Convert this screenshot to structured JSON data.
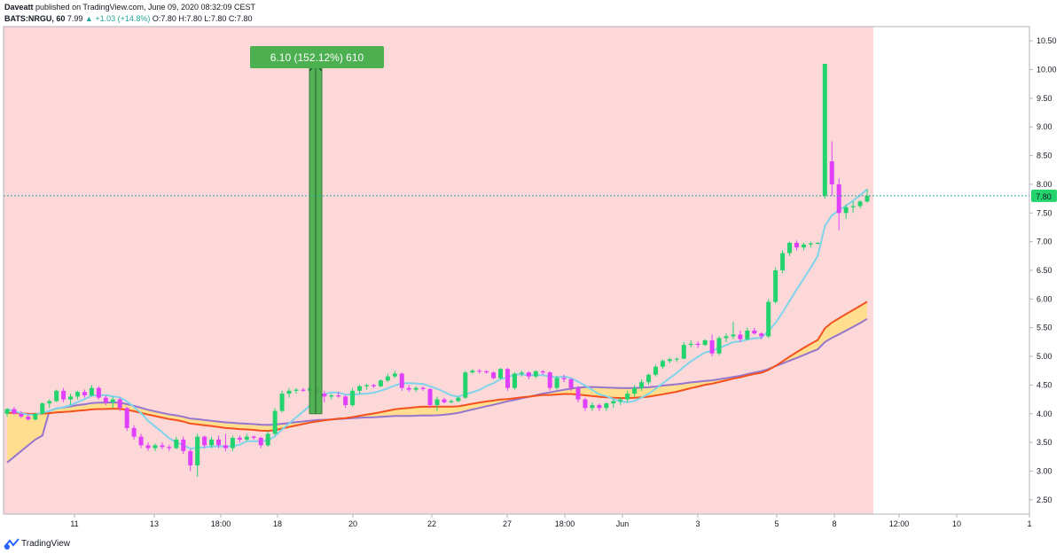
{
  "header": {
    "author": "Daveatt",
    "published": "published on TradingView.com, June 09, 2020 08:32:09 CEST",
    "symbol": "BATS:NRGU, 60",
    "last": "7.99",
    "change": "▲ +1.03 (+14.8%)",
    "ohlc": "O:7.80 H:7.80 L:7.80 C:7.80"
  },
  "footer": {
    "brand": "TradingView"
  },
  "colors": {
    "background_zone": "#fdd8d8",
    "up": "#22d36e",
    "down": "#e040fb",
    "sma_fast": "#7fd3ea",
    "ema_red": "#f4511e",
    "sma_purple": "#9575cd",
    "cloud": "#ffe082",
    "measure_box": "#4caf50",
    "price_line": "#26a69a"
  },
  "chart_data": {
    "type": "candlestick",
    "y_axis": {
      "min": 2.25,
      "max": 10.75,
      "position": "right",
      "tick_labels": [
        "2.50",
        "3.00",
        "3.50",
        "4.00",
        "4.50",
        "5.00",
        "5.50",
        "6.00",
        "6.50",
        "7.00",
        "7.50",
        "8.00",
        "8.50",
        "9.00",
        "9.50",
        "10.00",
        "10.50"
      ]
    },
    "x_axis": {
      "tick_labels": [
        "11",
        "13",
        "18:00",
        "18",
        "20",
        "22",
        "27",
        "18:00",
        "Jun",
        "3",
        "5",
        "8",
        "12:00",
        "10",
        "1"
      ]
    },
    "last_price_label": "7.80",
    "measure": {
      "label": "6.10 (152.12%) 610",
      "from": 4.0,
      "to": 10.1
    },
    "candles": [
      [
        4.0,
        4.1,
        3.95,
        4.08
      ],
      [
        4.08,
        4.12,
        3.98,
        4.0
      ],
      [
        4.0,
        4.05,
        3.92,
        3.95
      ],
      [
        3.95,
        4.0,
        3.88,
        3.9
      ],
      [
        3.9,
        4.02,
        3.88,
        4.0
      ],
      [
        4.0,
        4.2,
        3.98,
        4.18
      ],
      [
        4.18,
        4.25,
        4.1,
        4.22
      ],
      [
        4.22,
        4.42,
        4.2,
        4.4
      ],
      [
        4.4,
        4.45,
        4.2,
        4.25
      ],
      [
        4.25,
        4.35,
        4.15,
        4.3
      ],
      [
        4.3,
        4.4,
        4.25,
        4.38
      ],
      [
        4.38,
        4.42,
        4.28,
        4.32
      ],
      [
        4.32,
        4.5,
        4.3,
        4.45
      ],
      [
        4.45,
        4.48,
        4.25,
        4.28
      ],
      [
        4.28,
        4.32,
        4.15,
        4.2
      ],
      [
        4.2,
        4.3,
        4.1,
        4.25
      ],
      [
        4.25,
        4.28,
        4.05,
        4.1
      ],
      [
        4.1,
        4.12,
        3.7,
        3.75
      ],
      [
        3.75,
        3.8,
        3.55,
        3.6
      ],
      [
        3.6,
        3.65,
        3.4,
        3.45
      ],
      [
        3.45,
        3.5,
        3.35,
        3.4
      ],
      [
        3.4,
        3.48,
        3.35,
        3.45
      ],
      [
        3.45,
        3.5,
        3.38,
        3.42
      ],
      [
        3.42,
        3.46,
        3.35,
        3.4
      ],
      [
        3.4,
        3.6,
        3.38,
        3.55
      ],
      [
        3.55,
        3.6,
        3.3,
        3.35
      ],
      [
        3.35,
        3.38,
        3.0,
        3.1
      ],
      [
        3.1,
        3.65,
        2.9,
        3.6
      ],
      [
        3.6,
        3.62,
        3.4,
        3.45
      ],
      [
        3.45,
        3.6,
        3.4,
        3.55
      ],
      [
        3.55,
        3.62,
        3.4,
        3.45
      ],
      [
        3.45,
        3.65,
        3.35,
        3.4
      ],
      [
        3.4,
        3.62,
        3.35,
        3.58
      ],
      [
        3.58,
        3.62,
        3.5,
        3.55
      ],
      [
        3.55,
        3.65,
        3.52,
        3.6
      ],
      [
        3.6,
        3.62,
        3.55,
        3.58
      ],
      [
        3.58,
        3.6,
        3.4,
        3.45
      ],
      [
        3.45,
        3.7,
        3.42,
        3.65
      ],
      [
        3.65,
        4.1,
        3.62,
        4.05
      ],
      [
        4.05,
        4.4,
        4.02,
        4.35
      ],
      [
        4.35,
        4.45,
        4.28,
        4.4
      ],
      [
        4.4,
        4.45,
        4.35,
        4.42
      ],
      [
        4.42,
        4.45,
        4.38,
        4.4
      ],
      [
        4.4,
        4.48,
        4.35,
        4.45
      ],
      [
        4.45,
        4.47,
        4.32,
        4.35
      ],
      [
        4.35,
        4.4,
        4.2,
        4.3
      ],
      [
        4.3,
        4.35,
        4.25,
        4.32
      ],
      [
        4.32,
        4.38,
        4.28,
        4.3
      ],
      [
        4.3,
        4.33,
        4.1,
        4.15
      ],
      [
        4.15,
        4.45,
        4.12,
        4.4
      ],
      [
        4.4,
        4.5,
        4.35,
        4.48
      ],
      [
        4.48,
        4.52,
        4.42,
        4.5
      ],
      [
        4.5,
        4.52,
        4.45,
        4.48
      ],
      [
        4.48,
        4.6,
        4.46,
        4.58
      ],
      [
        4.58,
        4.7,
        4.55,
        4.65
      ],
      [
        4.65,
        4.75,
        4.62,
        4.7
      ],
      [
        4.7,
        4.72,
        4.4,
        4.45
      ],
      [
        4.45,
        4.5,
        4.38,
        4.42
      ],
      [
        4.42,
        4.48,
        4.38,
        4.45
      ],
      [
        4.45,
        4.48,
        4.4,
        4.43
      ],
      [
        4.43,
        4.45,
        4.1,
        4.15
      ],
      [
        4.15,
        4.3,
        4.05,
        4.25
      ],
      [
        4.25,
        4.28,
        4.18,
        4.2
      ],
      [
        4.2,
        4.25,
        4.18,
        4.22
      ],
      [
        4.22,
        4.3,
        4.2,
        4.28
      ],
      [
        4.28,
        4.75,
        4.26,
        4.72
      ],
      [
        4.72,
        4.78,
        4.7,
        4.75
      ],
      [
        4.75,
        4.78,
        4.7,
        4.74
      ],
      [
        4.74,
        4.76,
        4.7,
        4.72
      ],
      [
        4.72,
        4.74,
        4.6,
        4.62
      ],
      [
        4.62,
        4.8,
        4.6,
        4.78
      ],
      [
        4.78,
        4.8,
        4.4,
        4.45
      ],
      [
        4.45,
        4.72,
        4.42,
        4.7
      ],
      [
        4.7,
        4.75,
        4.65,
        4.72
      ],
      [
        4.72,
        4.74,
        4.6,
        4.65
      ],
      [
        4.65,
        4.76,
        4.62,
        4.74
      ],
      [
        4.74,
        4.76,
        4.68,
        4.72
      ],
      [
        4.72,
        4.74,
        4.4,
        4.45
      ],
      [
        4.45,
        4.66,
        4.42,
        4.62
      ],
      [
        4.62,
        4.68,
        4.55,
        4.6
      ],
      [
        4.6,
        4.62,
        4.4,
        4.45
      ],
      [
        4.45,
        4.48,
        4.2,
        4.25
      ],
      [
        4.25,
        4.28,
        4.05,
        4.1
      ],
      [
        4.1,
        4.2,
        4.05,
        4.15
      ],
      [
        4.15,
        4.18,
        4.05,
        4.1
      ],
      [
        4.1,
        4.2,
        4.05,
        4.18
      ],
      [
        4.18,
        4.25,
        4.1,
        4.22
      ],
      [
        4.22,
        4.28,
        4.15,
        4.25
      ],
      [
        4.25,
        4.4,
        4.2,
        4.35
      ],
      [
        4.35,
        4.5,
        4.3,
        4.45
      ],
      [
        4.45,
        4.6,
        4.4,
        4.55
      ],
      [
        4.55,
        4.7,
        4.5,
        4.68
      ],
      [
        4.68,
        4.85,
        4.65,
        4.82
      ],
      [
        4.82,
        4.95,
        4.78,
        4.92
      ],
      [
        4.92,
        4.98,
        4.88,
        4.95
      ],
      [
        4.95,
        4.98,
        4.9,
        4.96
      ],
      [
        4.96,
        5.25,
        4.95,
        5.2
      ],
      [
        5.2,
        5.28,
        5.15,
        5.22
      ],
      [
        5.22,
        5.26,
        5.15,
        5.2
      ],
      [
        5.2,
        5.3,
        5.18,
        5.28
      ],
      [
        5.28,
        5.38,
        5.0,
        5.05
      ],
      [
        5.05,
        5.35,
        5.02,
        5.32
      ],
      [
        5.32,
        5.4,
        5.25,
        5.35
      ],
      [
        5.35,
        5.6,
        5.3,
        5.38
      ],
      [
        5.38,
        5.45,
        5.25,
        5.3
      ],
      [
        5.3,
        5.5,
        5.28,
        5.45
      ],
      [
        5.45,
        5.5,
        5.38,
        5.4
      ],
      [
        5.4,
        5.42,
        5.3,
        5.35
      ],
      [
        5.35,
        6.0,
        5.32,
        5.95
      ],
      [
        5.95,
        6.55,
        5.92,
        6.5
      ],
      [
        6.5,
        6.85,
        6.45,
        6.8
      ],
      [
        6.8,
        7.0,
        6.75,
        6.98
      ],
      [
        6.98,
        7.02,
        6.85,
        6.9
      ],
      [
        6.9,
        6.98,
        6.85,
        6.95
      ],
      [
        6.95,
        7.0,
        6.9,
        6.97
      ],
      [
        6.97,
        6.99,
        6.95,
        6.98
      ],
      [
        7.8,
        10.1,
        7.75,
        10.1
      ],
      [
        8.4,
        8.75,
        7.8,
        8.0
      ],
      [
        8.0,
        8.1,
        7.2,
        7.5
      ],
      [
        7.5,
        7.65,
        7.4,
        7.6
      ],
      [
        7.6,
        7.7,
        7.5,
        7.62
      ],
      [
        7.62,
        7.72,
        7.58,
        7.7
      ],
      [
        7.7,
        7.92,
        7.68,
        7.8
      ]
    ],
    "indicators": [
      {
        "label": "SMA fast",
        "role": "sma_fast"
      },
      {
        "label": "EMA slow",
        "role": "ema_red"
      },
      {
        "label": "SMA slow",
        "role": "sma_purple"
      }
    ]
  }
}
